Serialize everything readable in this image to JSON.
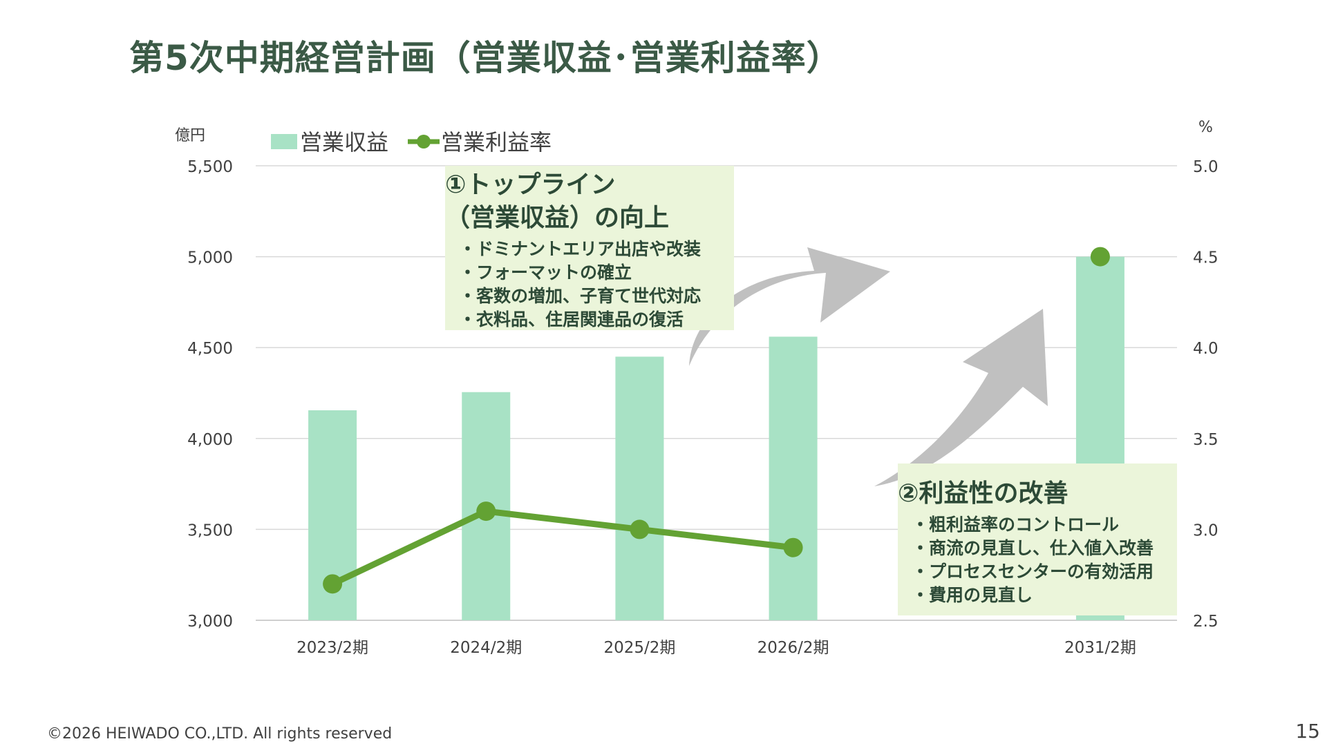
{
  "title": "第5次中期経営計画（営業収益･営業利益率）",
  "footer": "©2026  HEIWADO CO.,LTD.  All rights reserved",
  "page_number": "15",
  "colors": {
    "bar": "#a8e2c5",
    "line": "#63a233",
    "title": "#3b5a46",
    "box_bg": "#ebf5da",
    "arrow": "#c0c0c0"
  },
  "callout_top": {
    "heading_line1": "①トップライン",
    "heading_line2": "（営業収益）の向上",
    "items": [
      "ドミナントエリア出店や改装",
      "フォーマットの確立",
      "客数の増加、子育て世代対応",
      "衣料品、住居関連品の復活"
    ]
  },
  "callout_bottom": {
    "heading": "②利益性の改善",
    "items": [
      "粗利益率のコントロール",
      "商流の見直し、仕入値入改善",
      "プロセスセンターの有効活用",
      "費用の見直し"
    ]
  },
  "chart_data": {
    "type": "bar",
    "categories": [
      "2023/2期",
      "2024/2期",
      "2025/2期",
      "2026/2期",
      "2031/2期"
    ],
    "category_slots": [
      0,
      1,
      2,
      3,
      5
    ],
    "series": [
      {
        "name": "営業収益",
        "type": "bar",
        "axis": "left",
        "values": [
          4155,
          4255,
          4450,
          4560,
          5000
        ]
      },
      {
        "name": "営業利益率",
        "type": "line",
        "axis": "right",
        "values": [
          2.7,
          3.1,
          3.0,
          2.9,
          null
        ],
        "point_2031": 4.5
      }
    ],
    "ylabel_left": "億円",
    "ylabel_right": "%",
    "ylim_left": [
      3000,
      5500
    ],
    "ylim_right": [
      2.5,
      5.0
    ],
    "yticks_left": [
      "3,000",
      "3,500",
      "4,000",
      "4,500",
      "5,000",
      "5,500"
    ],
    "yticks_right": [
      "2.5",
      "3.0",
      "3.5",
      "4.0",
      "4.5",
      "5.0"
    ],
    "legend_position": "top-left",
    "grid": true
  }
}
